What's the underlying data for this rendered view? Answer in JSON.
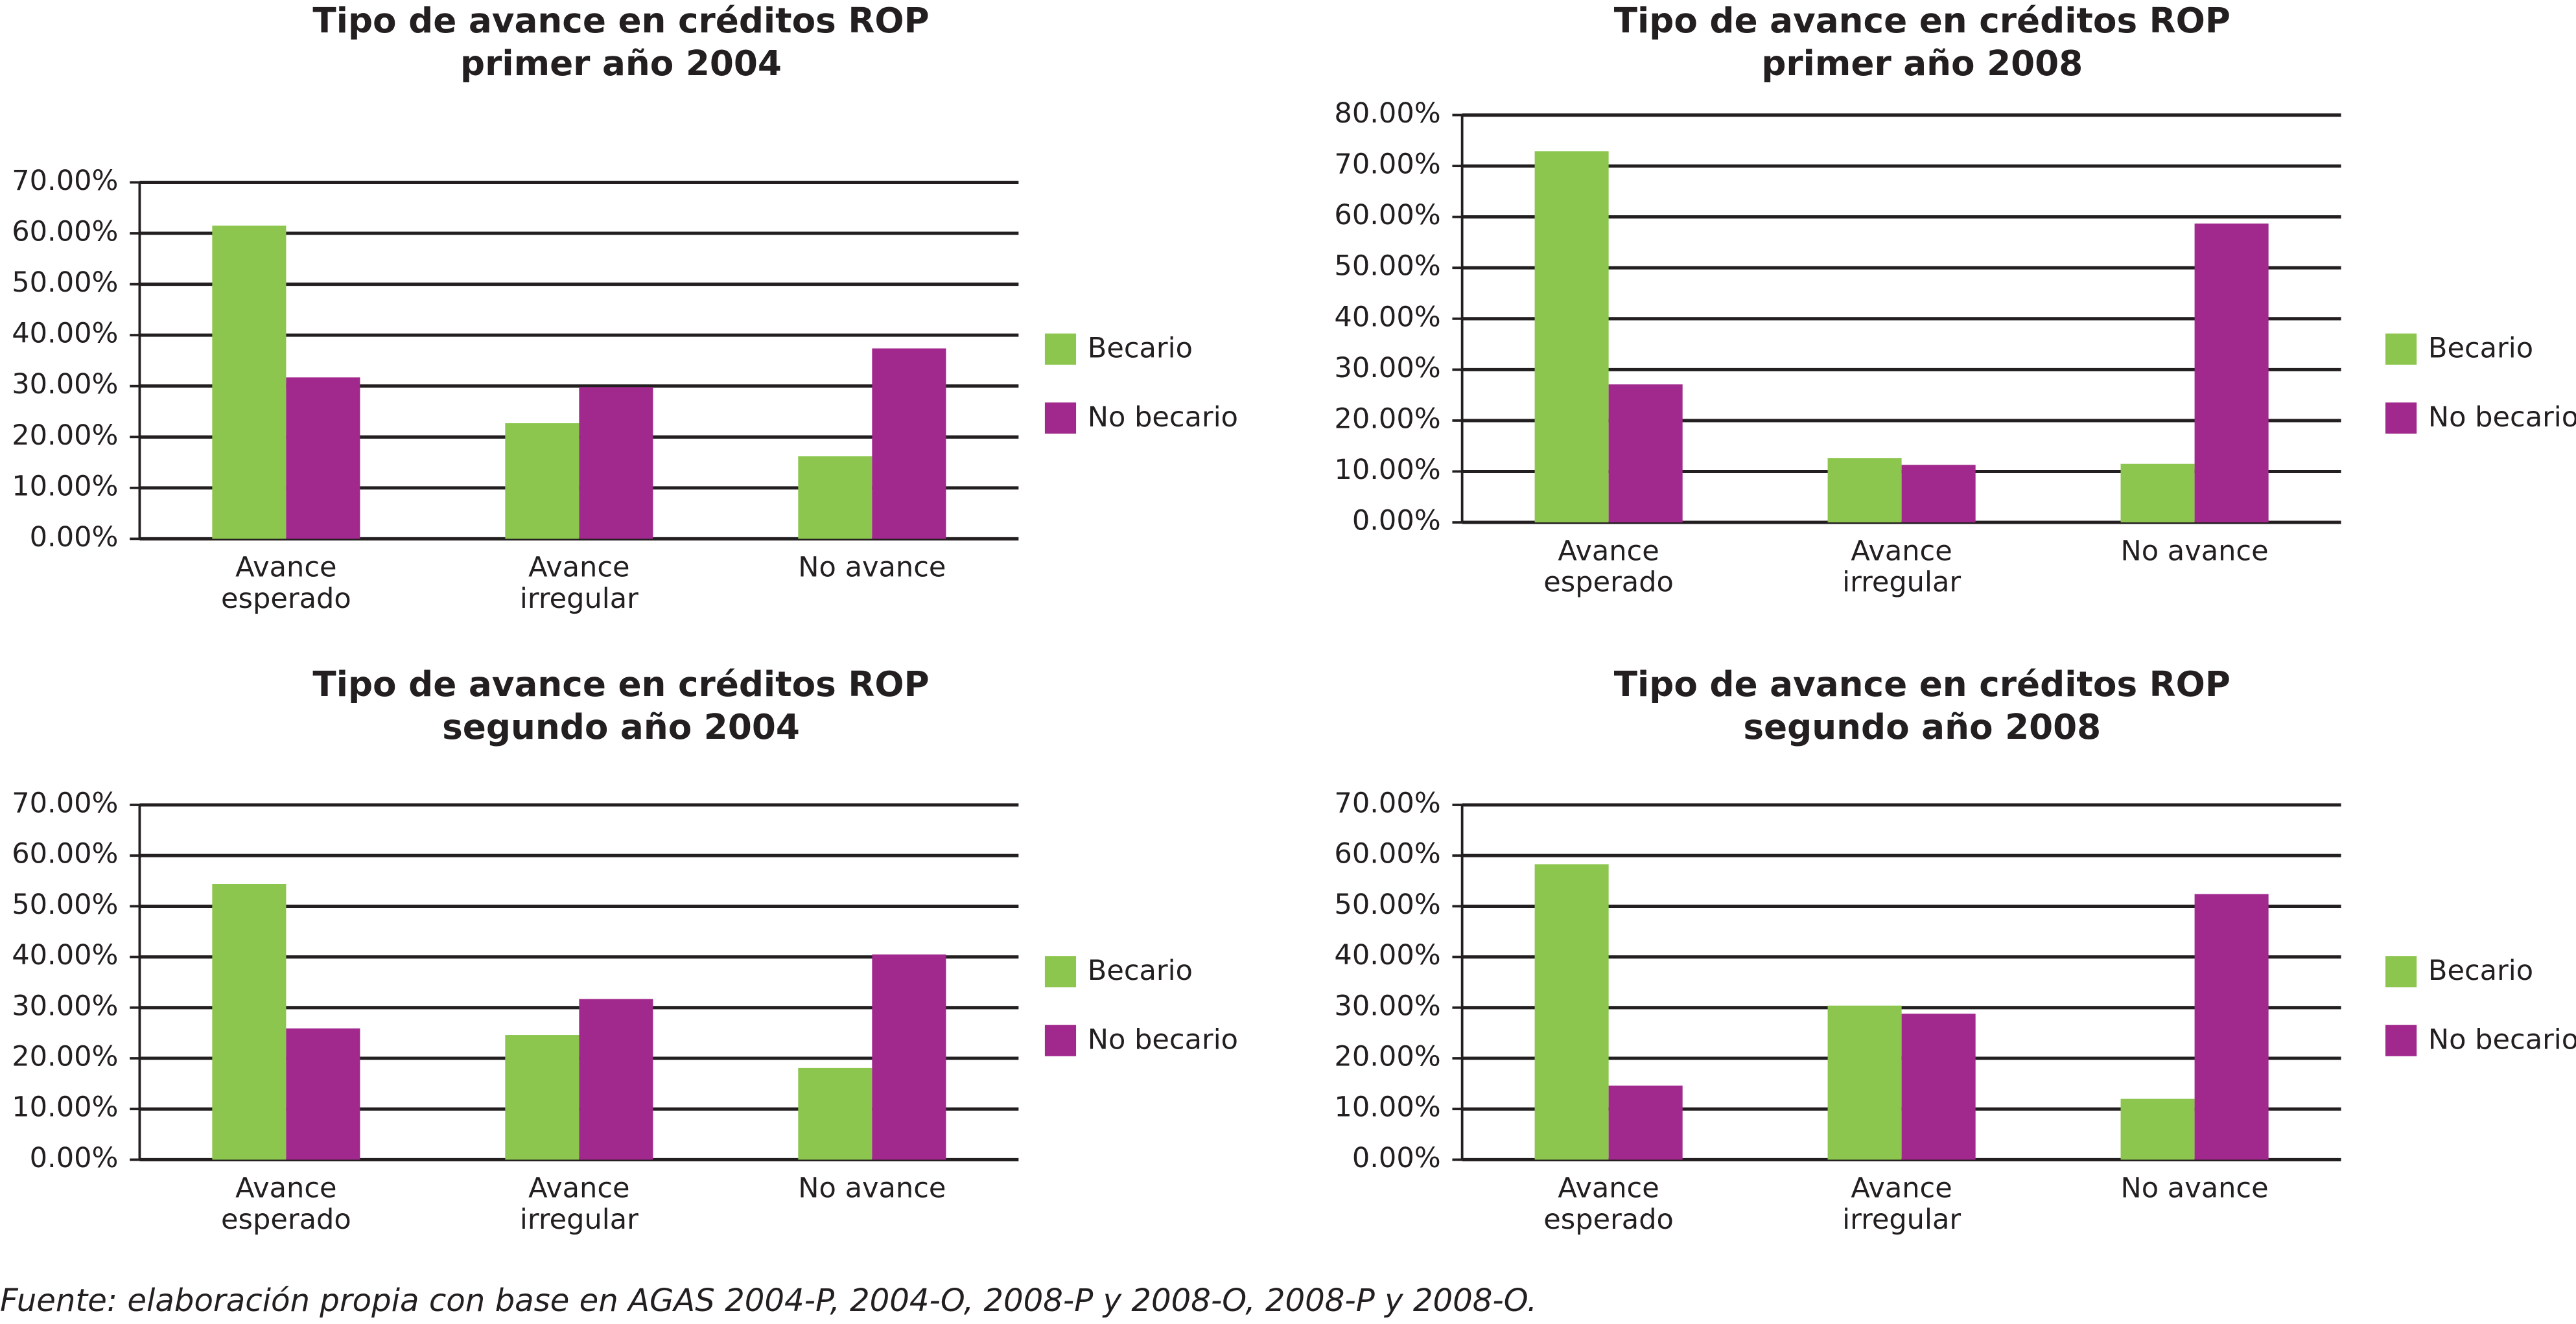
{
  "chart_data": [
    {
      "type": "bar",
      "title": "Tipo de avance en créditos ROP",
      "subtitle": "primer año 2004",
      "categories": [
        "Avance esperado",
        "Avance irregular",
        "No avance"
      ],
      "series": [
        {
          "name": "Becario",
          "color": "#8dc64f",
          "values": [
            61.5,
            22.7,
            16.2
          ]
        },
        {
          "name": "No becario",
          "color": "#a1288d",
          "values": [
            31.7,
            29.8,
            37.4
          ]
        }
      ],
      "ylim": [
        0,
        70
      ],
      "yticks": [
        {
          "value": 0,
          "label": "0.00%"
        },
        {
          "value": 10,
          "label": "10.00%"
        },
        {
          "value": 20,
          "label": "20.00%"
        },
        {
          "value": 30,
          "label": "30.00%"
        },
        {
          "value": 40,
          "label": "40.00%"
        },
        {
          "value": 50,
          "label": "50.00%"
        },
        {
          "value": 60,
          "label": "60.00%"
        },
        {
          "value": 70,
          "label": "70.00%"
        }
      ],
      "grid": true,
      "legend": "right"
    },
    {
      "type": "bar",
      "title": "Tipo de avance en créditos ROP",
      "subtitle": "primer año 2008",
      "categories": [
        "Avance esperado",
        "Avance irregular",
        "No avance"
      ],
      "series": [
        {
          "name": "Becario",
          "color": "#8dc64f",
          "values": [
            72.9,
            12.6,
            11.5
          ]
        },
        {
          "name": "No becario",
          "color": "#a1288d",
          "values": [
            27.1,
            11.3,
            58.7
          ]
        }
      ],
      "ylim": [
        0,
        80
      ],
      "yticks": [
        {
          "value": 0,
          "label": "0.00%"
        },
        {
          "value": 10,
          "label": "10.00%"
        },
        {
          "value": 20,
          "label": "20.00%"
        },
        {
          "value": 30,
          "label": "30.00%"
        },
        {
          "value": 40,
          "label": "40.00%"
        },
        {
          "value": 50,
          "label": "50.00%"
        },
        {
          "value": 60,
          "label": "60.00%"
        },
        {
          "value": 70,
          "label": "70.00%"
        },
        {
          "value": 80,
          "label": "80.00%"
        }
      ],
      "grid": true,
      "legend": "right"
    },
    {
      "type": "bar",
      "title": "Tipo de avance en créditos ROP",
      "subtitle": "segundo año 2004",
      "categories": [
        "Avance esperado",
        "Avance irregular",
        "No avance"
      ],
      "series": [
        {
          "name": "Becario",
          "color": "#8dc64f",
          "values": [
            54.4,
            24.6,
            18.1
          ]
        },
        {
          "name": "No becario",
          "color": "#a1288d",
          "values": [
            25.9,
            31.7,
            40.5
          ]
        }
      ],
      "ylim": [
        0,
        70
      ],
      "yticks": [
        {
          "value": 0,
          "label": "0.00%"
        },
        {
          "value": 10,
          "label": "10.00%"
        },
        {
          "value": 20,
          "label": "20.00%"
        },
        {
          "value": 30,
          "label": "30.00%"
        },
        {
          "value": 40,
          "label": "40.00%"
        },
        {
          "value": 50,
          "label": "50.00%"
        },
        {
          "value": 60,
          "label": "60.00%"
        },
        {
          "value": 70,
          "label": "70.00%"
        }
      ],
      "grid": true,
      "legend": "right"
    },
    {
      "type": "bar",
      "title": "Tipo de avance en créditos ROP",
      "subtitle": "segundo año 2008",
      "categories": [
        "Avance esperado",
        "Avance irregular",
        "No avance"
      ],
      "series": [
        {
          "name": "Becario",
          "color": "#8dc64f",
          "values": [
            58.3,
            30.4,
            12.0
          ]
        },
        {
          "name": "No becario",
          "color": "#a1288d",
          "values": [
            14.6,
            28.8,
            52.4
          ]
        }
      ],
      "ylim": [
        0,
        70
      ],
      "yticks": [
        {
          "value": 0,
          "label": "0.00%"
        },
        {
          "value": 10,
          "label": "10.00%"
        },
        {
          "value": 20,
          "label": "20.00%"
        },
        {
          "value": 30,
          "label": "30.00%"
        },
        {
          "value": 40,
          "label": "40.00%"
        },
        {
          "value": 50,
          "label": "50.00%"
        },
        {
          "value": 60,
          "label": "60.00%"
        },
        {
          "value": 70,
          "label": "70.00%"
        }
      ],
      "grid": true,
      "legend": "right"
    }
  ],
  "footnote": "Fuente: elaboración propia con base en AGAS 2004-P, 2004-O, 2008-P y 2008-O, 2008-P y 2008-O."
}
